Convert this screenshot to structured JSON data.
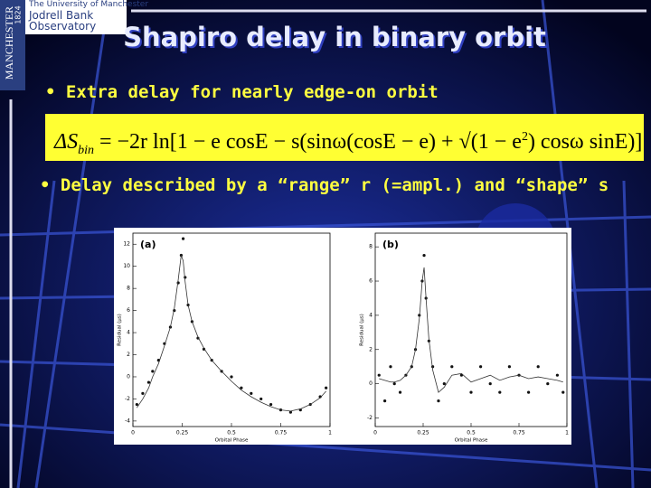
{
  "header": {
    "university": "The University of Manchester",
    "unit_line1": "Jodrell Bank",
    "unit_line2": "Observatory",
    "side_name": "MANCHESTER",
    "side_year": "1824"
  },
  "title": "Shapiro delay in binary orbit",
  "bullets": [
    "Extra delay for nearly edge-on orbit",
    "Delay described by a “range” r (=ampl.) and “shape” s"
  ],
  "equation": [
    "ΔS",
    "bin",
    "= −2r ln[1 − e cosE − s(sinω(cosE − e) + √(1 − e",
    "2",
    ") cosω sinE)]"
  ],
  "chart_data": [
    {
      "type": "scatter",
      "panel": "(a)",
      "x_label": "Orbital Phase",
      "y_label": "Residual (µs)",
      "x": [
        0.02,
        0.05,
        0.08,
        0.1,
        0.13,
        0.16,
        0.19,
        0.21,
        0.23,
        0.245,
        0.255,
        0.265,
        0.28,
        0.3,
        0.33,
        0.36,
        0.4,
        0.45,
        0.5,
        0.55,
        0.6,
        0.65,
        0.7,
        0.75,
        0.8,
        0.85,
        0.9,
        0.95,
        0.98
      ],
      "series": [
        {
          "type": "scatter",
          "color": "#111111",
          "values": [
            -2.5,
            -1.5,
            -0.5,
            0.5,
            1.5,
            3,
            4.5,
            6,
            8.5,
            11,
            12.5,
            9,
            6.5,
            5,
            3.5,
            2.5,
            1.5,
            0.5,
            0,
            -1,
            -1.5,
            -2,
            -2.5,
            -3,
            -3.2,
            -3,
            -2.5,
            -1.8,
            -1
          ]
        },
        {
          "type": "line",
          "color": "#333333",
          "values": [
            -2.8,
            -2,
            -1,
            0,
            1.2,
            2.8,
            4.5,
            6.2,
            8.8,
            11,
            10.5,
            8.6,
            6.5,
            5,
            3.6,
            2.6,
            1.5,
            0.5,
            -0.4,
            -1.2,
            -1.8,
            -2.3,
            -2.7,
            -3,
            -3.1,
            -2.9,
            -2.5,
            -1.9,
            -1.3
          ]
        }
      ],
      "xlim": [
        0,
        1
      ],
      "xticks": [
        0,
        0.25,
        0.5,
        0.75,
        1
      ],
      "ylim": [
        -4.5,
        13
      ],
      "yticks": [
        -4,
        -2,
        0,
        2,
        4,
        6,
        8,
        10,
        12
      ]
    },
    {
      "type": "scatter",
      "panel": "(b)",
      "x_label": "Orbital Phase",
      "y_label": "Residual (µs)",
      "x": [
        0.02,
        0.05,
        0.08,
        0.1,
        0.13,
        0.16,
        0.19,
        0.21,
        0.23,
        0.245,
        0.255,
        0.265,
        0.28,
        0.3,
        0.33,
        0.36,
        0.4,
        0.45,
        0.5,
        0.55,
        0.6,
        0.65,
        0.7,
        0.75,
        0.8,
        0.85,
        0.9,
        0.95,
        0.98
      ],
      "series": [
        {
          "type": "scatter",
          "color": "#111111",
          "values": [
            0.5,
            -1,
            1,
            0,
            -0.5,
            0.5,
            1,
            2,
            4,
            6,
            7.5,
            5,
            2.5,
            1,
            -1,
            0,
            1,
            0.5,
            -0.5,
            1,
            0,
            -0.5,
            1,
            0.5,
            -0.5,
            1,
            0,
            0.5,
            -0.5
          ]
        },
        {
          "type": "line",
          "color": "#333333",
          "values": [
            0.3,
            0.2,
            0.1,
            0.1,
            0.2,
            0.5,
            1,
            2,
            3.8,
            6,
            6.8,
            5,
            2.6,
            0.8,
            -0.5,
            -0.2,
            0.5,
            0.6,
            0.1,
            0.3,
            0.5,
            0.2,
            0.4,
            0.5,
            0.3,
            0.4,
            0.3,
            0.2,
            0.1
          ]
        }
      ],
      "xlim": [
        0,
        1
      ],
      "xticks": [
        0,
        0.25,
        0.5,
        0.75,
        1
      ],
      "ylim": [
        -2.5,
        8.8
      ],
      "yticks": [
        -2,
        0,
        2,
        4,
        6,
        8
      ]
    }
  ]
}
